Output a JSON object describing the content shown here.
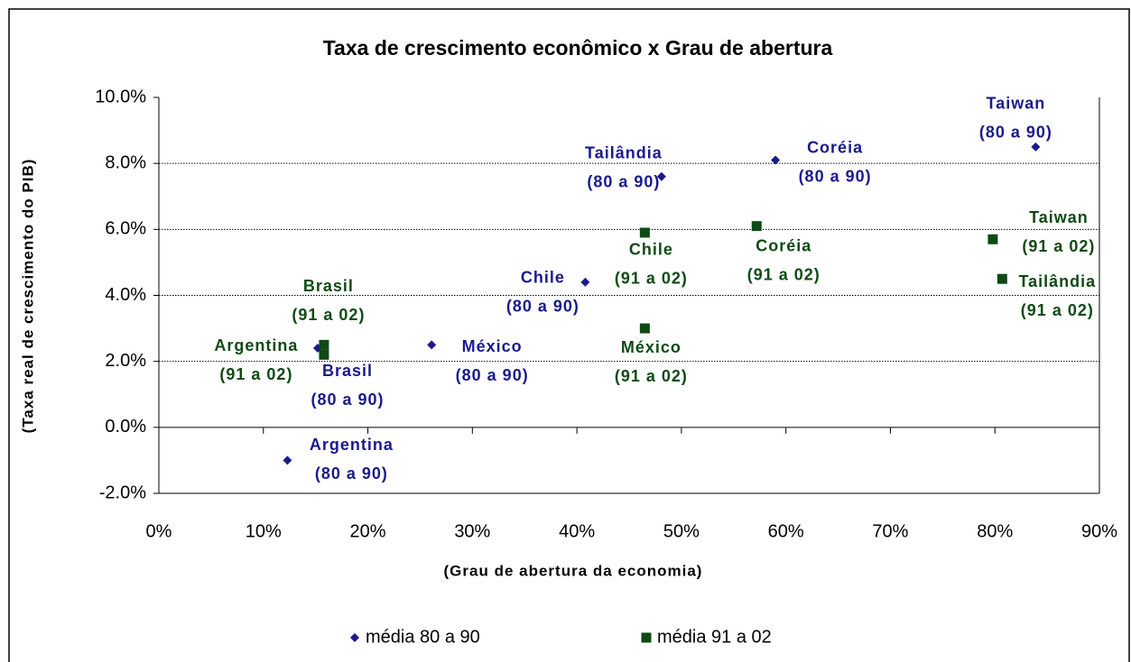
{
  "chart_data": {
    "type": "scatter",
    "title": "Taxa de crescimento econômico x Grau de abertura",
    "x_label": "(Grau de abertura da economia)",
    "y_label": "(Taxa real de crescimento do PIB)",
    "xlim": [
      0,
      90
    ],
    "ylim": [
      -2,
      10
    ],
    "xticks": [
      {
        "value": 0,
        "label": "0%"
      },
      {
        "value": 10,
        "label": "10%"
      },
      {
        "value": 20,
        "label": "20%"
      },
      {
        "value": 30,
        "label": "30%"
      },
      {
        "value": 40,
        "label": "40%"
      },
      {
        "value": 50,
        "label": "50%"
      },
      {
        "value": 60,
        "label": "60%"
      },
      {
        "value": 70,
        "label": "70%"
      },
      {
        "value": 80,
        "label": "80%"
      },
      {
        "value": 90,
        "label": "90%"
      }
    ],
    "yticks": [
      {
        "value": -2,
        "label": "-2.0%"
      },
      {
        "value": 0,
        "label": "0.0%"
      },
      {
        "value": 2,
        "label": "2.0%"
      },
      {
        "value": 4,
        "label": "4.0%"
      },
      {
        "value": 6,
        "label": "6.0%"
      },
      {
        "value": 8,
        "label": "8.0%"
      },
      {
        "value": 10,
        "label": "10.0%"
      }
    ],
    "grid": true,
    "legend": "bottom",
    "series": [
      {
        "name": "média 80 a 90",
        "color": "#1a1a8c",
        "marker": "diamond",
        "x": [
          12.3,
          15.2,
          26.1,
          40.8,
          48.1,
          59.0,
          83.9
        ],
        "values": [
          -1.0,
          2.4,
          2.5,
          4.4,
          7.6,
          8.1,
          8.5
        ],
        "point_labels": [
          [
            "Argentina",
            "(80 a 90)"
          ],
          [
            "Brasil",
            "(80 a 90)"
          ],
          [
            "México",
            "(80 a 90)"
          ],
          [
            "Chile",
            "(80 a 90)"
          ],
          [
            "Tailândia",
            "(80 a 90)"
          ],
          [
            "Coréia",
            "(80 a 90)"
          ],
          [
            "Taiwan",
            "(80 a 90)"
          ]
        ]
      },
      {
        "name": "média 91 a 02",
        "color": "#0f4a14",
        "marker": "square",
        "x": [
          15.8,
          15.8,
          46.5,
          46.5,
          57.2,
          79.8,
          80.7
        ],
        "values": [
          2.2,
          2.5,
          3.0,
          5.9,
          6.1,
          5.7,
          4.5
        ],
        "point_labels": [
          [
            "Argentina",
            "(91 a 02)"
          ],
          [
            "Brasil",
            "(91 a 02)"
          ],
          [
            "México",
            "(91 a 02)"
          ],
          [
            "Chile",
            "(91 a 02)"
          ],
          [
            "Coréia",
            "(91 a 02)"
          ],
          [
            "Taiwan",
            "(91 a 02)"
          ],
          [
            "Tailândia",
            "(91 a 02)"
          ]
        ]
      }
    ]
  }
}
